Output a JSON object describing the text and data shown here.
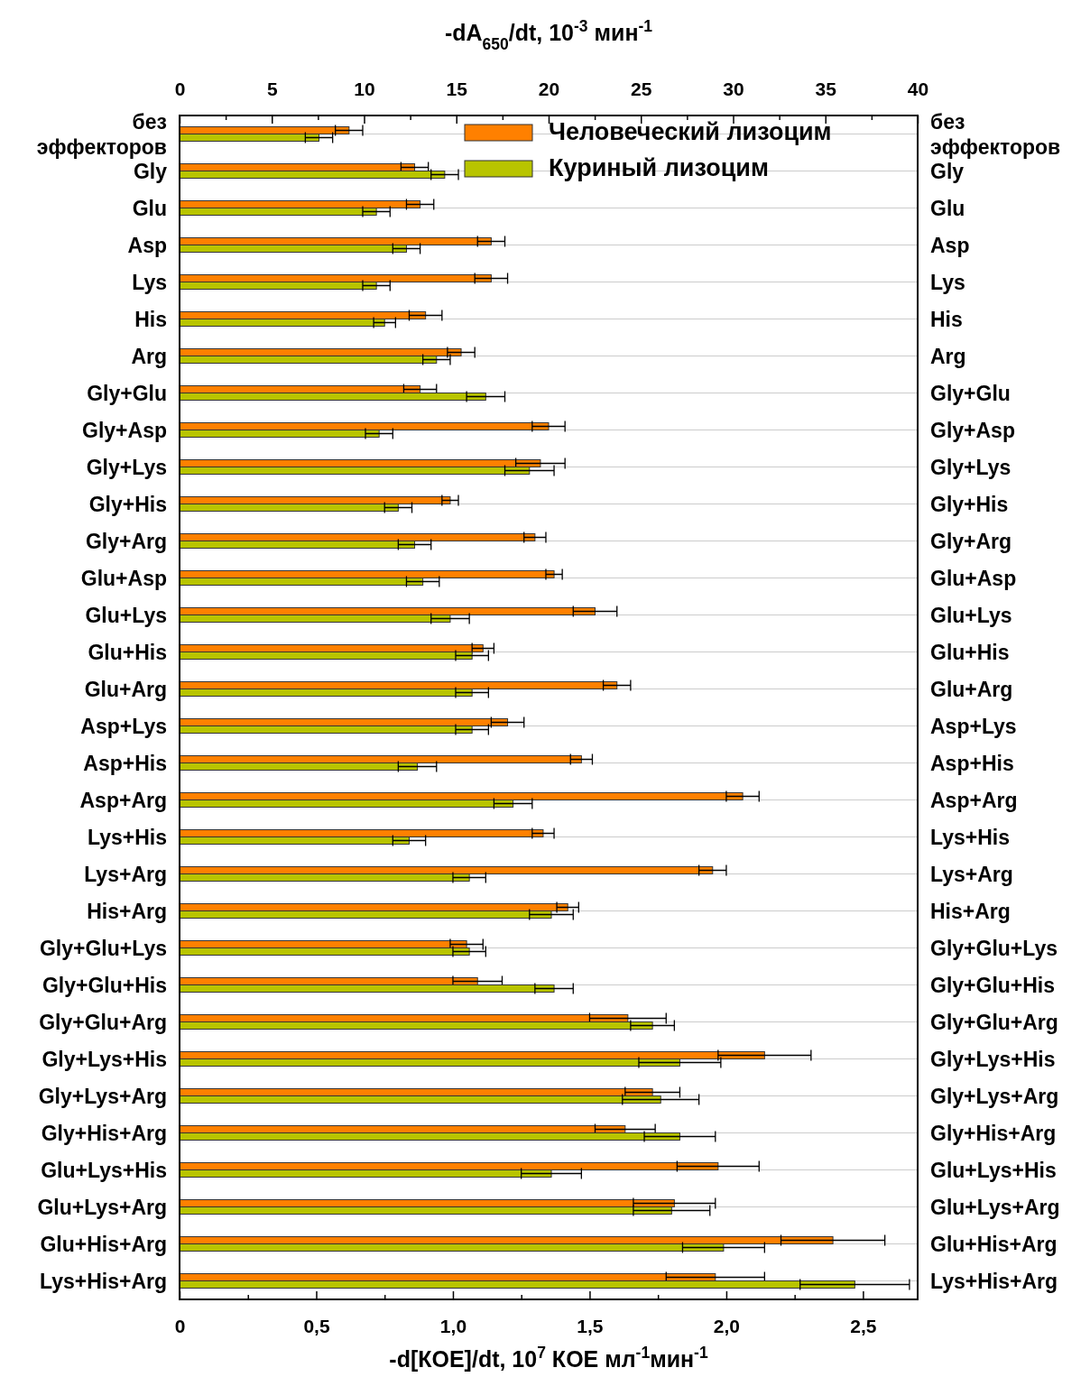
{
  "chart_data": {
    "type": "bar",
    "orientation": "horizontal",
    "xlabel": "-d[КОЕ]/dt, 10$^{7}$ КОЕ мл$^{-1}$мин$^{-1}$",
    "x2label": "-dA$_{650}$/dt, 10$^{-3}$ мин$^{-1}$",
    "categories": [
      "без эффекторов",
      "Gly",
      "Glu",
      "Asp",
      "Lys",
      "His",
      "Arg",
      "Gly+Glu",
      "Gly+Asp",
      "Gly+Lys",
      "Gly+His",
      "Gly+Arg",
      "Glu+Asp",
      "Glu+Lys",
      "Glu+His",
      "Glu+Arg",
      "Asp+Lys",
      "Asp+His",
      "Asp+Arg",
      "Lys+His",
      "Lys+Arg",
      "His+Arg",
      "Gly+Glu+Lys",
      "Gly+Glu+His",
      "Gly+Glu+Arg",
      "Gly+Lys+His",
      "Gly+Lys+Arg",
      "Gly+His+Arg",
      "Glu+Lys+His",
      "Glu+Lys+Arg",
      "Glu+His+Arg",
      "Lys+His+Arg"
    ],
    "series": [
      {
        "name": "Человеческий лизоцим",
        "color": "#ff8000",
        "values": [
          0.62,
          0.86,
          0.88,
          1.14,
          1.14,
          0.9,
          1.03,
          0.88,
          1.35,
          1.32,
          0.99,
          1.3,
          1.37,
          1.52,
          1.11,
          1.6,
          1.2,
          1.47,
          2.06,
          1.33,
          1.95,
          1.42,
          1.05,
          1.09,
          1.64,
          2.14,
          1.73,
          1.63,
          1.97,
          1.81,
          2.39,
          1.96
        ],
        "errors": [
          0.05,
          0.05,
          0.05,
          0.05,
          0.06,
          0.06,
          0.05,
          0.06,
          0.06,
          0.09,
          0.03,
          0.04,
          0.03,
          0.08,
          0.04,
          0.05,
          0.06,
          0.04,
          0.06,
          0.04,
          0.05,
          0.04,
          0.06,
          0.09,
          0.14,
          0.17,
          0.1,
          0.11,
          0.15,
          0.15,
          0.19,
          0.18
        ]
      },
      {
        "name": "Куриный лизоцим",
        "color": "#b8c400",
        "values": [
          0.51,
          0.97,
          0.72,
          0.83,
          0.72,
          0.75,
          0.94,
          1.12,
          0.73,
          1.28,
          0.8,
          0.86,
          0.89,
          0.99,
          1.07,
          1.07,
          1.07,
          0.87,
          1.22,
          0.84,
          1.06,
          1.36,
          1.06,
          1.37,
          1.73,
          1.83,
          1.76,
          1.83,
          1.36,
          1.8,
          1.99,
          2.47
        ],
        "errors": [
          0.05,
          0.05,
          0.05,
          0.05,
          0.05,
          0.04,
          0.05,
          0.07,
          0.05,
          0.09,
          0.05,
          0.06,
          0.06,
          0.07,
          0.06,
          0.06,
          0.06,
          0.07,
          0.07,
          0.06,
          0.06,
          0.08,
          0.06,
          0.07,
          0.08,
          0.15,
          0.14,
          0.13,
          0.11,
          0.14,
          0.15,
          0.2
        ]
      }
    ],
    "xlim": [
      0,
      2.7
    ],
    "xticks": [
      0,
      {
        "value": 0.25,
        "label": null
      },
      {
        "value": 0.5,
        "label": "0,5"
      },
      {
        "value": 0.75,
        "label": null
      },
      {
        "value": 1.0,
        "label": "1,0"
      },
      {
        "value": 1.25,
        "label": null
      },
      {
        "value": 1.5,
        "label": "1,5"
      },
      {
        "value": 1.75,
        "label": null
      },
      {
        "value": 2.0,
        "label": "2,0"
      },
      {
        "value": 2.25,
        "label": null
      },
      {
        "value": 2.5,
        "label": "2,5"
      }
    ],
    "x2lim": [
      0,
      40
    ],
    "x2ticks": [
      0,
      {
        "value": 2.5,
        "label": null
      },
      5,
      {
        "value": 7.5,
        "label": null
      },
      10,
      {
        "value": 12.5,
        "label": null
      },
      15,
      {
        "value": 17.5,
        "label": null
      },
      20,
      {
        "value": 22.5,
        "label": null
      },
      25,
      {
        "value": 27.5,
        "label": null
      },
      30,
      {
        "value": 32.5,
        "label": null
      },
      35,
      {
        "value": 37.5,
        "label": null
      },
      40
    ],
    "grid": "y",
    "legend": "top right"
  }
}
